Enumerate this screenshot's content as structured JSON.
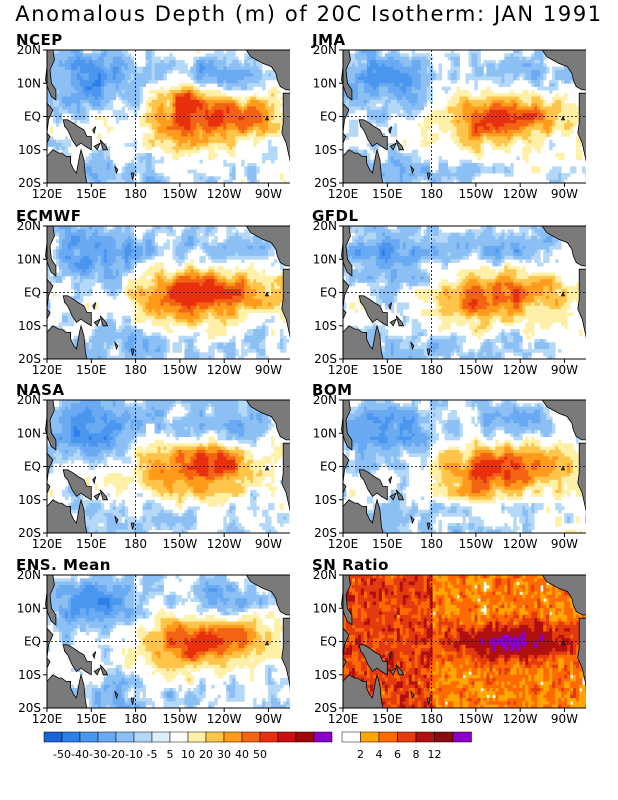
{
  "title": "Anomalous Depth (m) of 20C Isotherm: JAN 1991",
  "chart_data": {
    "type": "heatmap",
    "grid": "dashed lines at 180 and EQ",
    "x_ticks": [
      "120E",
      "150E",
      "180",
      "150W",
      "120W",
      "90W"
    ],
    "y_ticks": [
      "20N",
      "10N",
      "EQ",
      "10S",
      "20S"
    ],
    "xlim": [
      "120E",
      "70W"
    ],
    "ylim": [
      "20S",
      "20N"
    ],
    "panels": [
      {
        "name": "NCEP",
        "max_anomaly_m": 40,
        "max_anomaly_at": "120W, EQ",
        "secondary_max_m": 40,
        "secondary_at": "150W, 5N"
      },
      {
        "name": "JMA",
        "max_anomaly_m": 40,
        "max_anomaly_at": "125W, EQ"
      },
      {
        "name": "ECMWF",
        "max_anomaly_m": 50,
        "max_anomaly_at": "120W, EQ"
      },
      {
        "name": "GFDL",
        "max_anomaly_m": 40,
        "max_anomaly_at": "115W, EQ"
      },
      {
        "name": "NASA",
        "max_anomaly_m": 40,
        "max_anomaly_at": "125W, EQ"
      },
      {
        "name": "BOM",
        "max_anomaly_m": 40,
        "max_anomaly_at": "120W, EQ"
      },
      {
        "name": "ENS. Mean",
        "max_anomaly_m": 40,
        "max_anomaly_at": "120W, EQ"
      },
      {
        "name": "SN Ratio",
        "max_value": 12
      }
    ],
    "colorbar_anomaly": {
      "labels": [
        "-50",
        "-40",
        "-30",
        "-20",
        "-10",
        "-5",
        "5",
        "10",
        "20",
        "30",
        "40",
        "50"
      ],
      "colors": [
        "#1b64d8",
        "#2d7ee8",
        "#4b96ee",
        "#6aaaf2",
        "#8cc0f5",
        "#b4d8f8",
        "#dcf0fb",
        "#ffffff",
        "#fff0a8",
        "#ffc44a",
        "#ff9a1a",
        "#f26414",
        "#e8300e",
        "#c81010",
        "#a00808",
        "#8a00c8"
      ]
    },
    "colorbar_sn": {
      "labels": [
        "2",
        "4",
        "6",
        "8",
        "12"
      ],
      "colors": [
        "#ffffff",
        "#ffa600",
        "#ff6a00",
        "#e43a10",
        "#b01010",
        "#8a0c0c",
        "#8a00c8"
      ]
    }
  }
}
